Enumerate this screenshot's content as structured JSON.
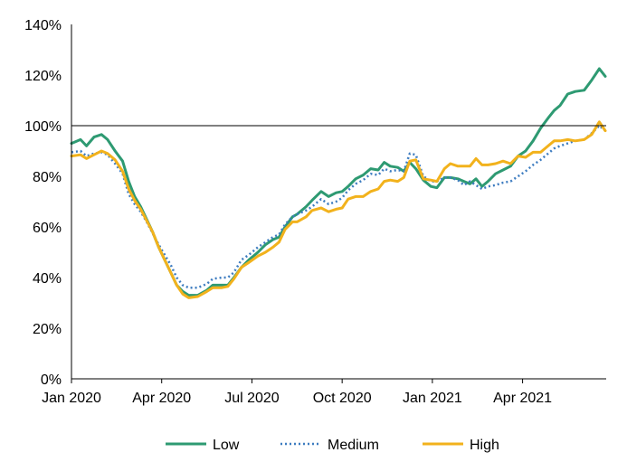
{
  "chart_data": {
    "type": "line",
    "title": "",
    "xlabel": "",
    "ylabel": "",
    "ylim": [
      0,
      140
    ],
    "y_ticks": [
      "0%",
      "20%",
      "40%",
      "60%",
      "80%",
      "100%",
      "120%",
      "140%"
    ],
    "x_ticks": [
      {
        "label": "Jan 2020",
        "month": 0
      },
      {
        "label": "Apr 2020",
        "month": 3
      },
      {
        "label": "Jul 2020",
        "month": 6
      },
      {
        "label": "Oct 2020",
        "month": 9
      },
      {
        "label": "Jan 2021",
        "month": 12
      },
      {
        "label": "Apr 2021",
        "month": 15
      }
    ],
    "reference_line": 100,
    "legend_position": "bottom",
    "series": [
      {
        "name": "Low",
        "color": "#2e9a72",
        "style": "solid",
        "points": [
          [
            0,
            93
          ],
          [
            0.3,
            94.5
          ],
          [
            0.5,
            92
          ],
          [
            0.75,
            95.5
          ],
          [
            1,
            96.5
          ],
          [
            1.2,
            94.5
          ],
          [
            1.45,
            90
          ],
          [
            1.7,
            86
          ],
          [
            1.9,
            78
          ],
          [
            2.1,
            72
          ],
          [
            2.3,
            68
          ],
          [
            2.5,
            63
          ],
          [
            2.7,
            58
          ],
          [
            2.9,
            52
          ],
          [
            3.1,
            47
          ],
          [
            3.3,
            42
          ],
          [
            3.5,
            37
          ],
          [
            3.7,
            34.5
          ],
          [
            3.9,
            33
          ],
          [
            4.2,
            33
          ],
          [
            4.5,
            35
          ],
          [
            4.7,
            37
          ],
          [
            5,
            37
          ],
          [
            5.2,
            37
          ],
          [
            5.4,
            40
          ],
          [
            5.65,
            44
          ],
          [
            5.9,
            47
          ],
          [
            6.2,
            50
          ],
          [
            6.45,
            53
          ],
          [
            6.7,
            55
          ],
          [
            6.9,
            56
          ],
          [
            7.1,
            60
          ],
          [
            7.35,
            64
          ],
          [
            7.5,
            65
          ],
          [
            7.8,
            68
          ],
          [
            8,
            70.5
          ],
          [
            8.3,
            74
          ],
          [
            8.55,
            72
          ],
          [
            8.8,
            73.5
          ],
          [
            9,
            74
          ],
          [
            9.2,
            76
          ],
          [
            9.45,
            79
          ],
          [
            9.7,
            80.5
          ],
          [
            9.95,
            83
          ],
          [
            10.2,
            82.5
          ],
          [
            10.4,
            85.5
          ],
          [
            10.6,
            84
          ],
          [
            10.85,
            83.5
          ],
          [
            11.05,
            82
          ],
          [
            11.25,
            85.5
          ],
          [
            11.45,
            83
          ],
          [
            11.7,
            78.5
          ],
          [
            11.95,
            76
          ],
          [
            12.15,
            75.5
          ],
          [
            12.4,
            79.5
          ],
          [
            12.6,
            79.5
          ],
          [
            12.85,
            79
          ],
          [
            13.05,
            78
          ],
          [
            13.25,
            77
          ],
          [
            13.45,
            79
          ],
          [
            13.65,
            76
          ],
          [
            13.85,
            78
          ],
          [
            14.1,
            81
          ],
          [
            14.35,
            82.5
          ],
          [
            14.6,
            84
          ],
          [
            14.85,
            88
          ],
          [
            15.1,
            90
          ],
          [
            15.35,
            94
          ],
          [
            15.6,
            99
          ],
          [
            15.85,
            103
          ],
          [
            16.05,
            106
          ],
          [
            16.25,
            108
          ],
          [
            16.5,
            112.5
          ],
          [
            16.75,
            113.5
          ],
          [
            17.05,
            114
          ],
          [
            17.3,
            118
          ],
          [
            17.55,
            122.5
          ],
          [
            17.75,
            119.5
          ]
        ]
      },
      {
        "name": "Medium",
        "color": "#3d7cc0",
        "style": "dotted",
        "points": [
          [
            0,
            89.5
          ],
          [
            0.3,
            90
          ],
          [
            0.5,
            88
          ],
          [
            0.75,
            89
          ],
          [
            1,
            89.5
          ],
          [
            1.2,
            88.5
          ],
          [
            1.45,
            85
          ],
          [
            1.7,
            81
          ],
          [
            1.9,
            73
          ],
          [
            2.1,
            69
          ],
          [
            2.3,
            66
          ],
          [
            2.5,
            62
          ],
          [
            2.7,
            57.5
          ],
          [
            2.9,
            53
          ],
          [
            3.1,
            49
          ],
          [
            3.3,
            45
          ],
          [
            3.5,
            40
          ],
          [
            3.7,
            37
          ],
          [
            3.9,
            36
          ],
          [
            4.2,
            36
          ],
          [
            4.5,
            37.5
          ],
          [
            4.7,
            39.5
          ],
          [
            5,
            40
          ],
          [
            5.2,
            40
          ],
          [
            5.4,
            42
          ],
          [
            5.65,
            47
          ],
          [
            5.9,
            49
          ],
          [
            6.2,
            52
          ],
          [
            6.45,
            54
          ],
          [
            6.7,
            56
          ],
          [
            6.9,
            57
          ],
          [
            7.1,
            61
          ],
          [
            7.35,
            64
          ],
          [
            7.5,
            65
          ],
          [
            7.8,
            66.5
          ],
          [
            8,
            68
          ],
          [
            8.3,
            71
          ],
          [
            8.55,
            69
          ],
          [
            8.8,
            70
          ],
          [
            9,
            71.5
          ],
          [
            9.2,
            74.5
          ],
          [
            9.45,
            77
          ],
          [
            9.7,
            78.5
          ],
          [
            9.95,
            81
          ],
          [
            10.2,
            80.5
          ],
          [
            10.4,
            83
          ],
          [
            10.6,
            82
          ],
          [
            10.85,
            82.5
          ],
          [
            11.05,
            82
          ],
          [
            11.25,
            89
          ],
          [
            11.45,
            88.5
          ],
          [
            11.7,
            80
          ],
          [
            11.95,
            78
          ],
          [
            12.15,
            78
          ],
          [
            12.4,
            79.5
          ],
          [
            12.6,
            79.5
          ],
          [
            12.85,
            78.5
          ],
          [
            13.05,
            76.5
          ],
          [
            13.25,
            78
          ],
          [
            13.45,
            76.5
          ],
          [
            13.65,
            75
          ],
          [
            13.85,
            76
          ],
          [
            14.1,
            76.5
          ],
          [
            14.35,
            77.5
          ],
          [
            14.6,
            78
          ],
          [
            14.85,
            80
          ],
          [
            15.1,
            82
          ],
          [
            15.35,
            84.5
          ],
          [
            15.6,
            86.5
          ],
          [
            15.85,
            89
          ],
          [
            16.05,
            91
          ],
          [
            16.25,
            92
          ],
          [
            16.5,
            93
          ],
          [
            16.75,
            94
          ],
          [
            17.05,
            94.5
          ],
          [
            17.3,
            97
          ],
          [
            17.55,
            100
          ],
          [
            17.75,
            98
          ]
        ]
      },
      {
        "name": "High",
        "color": "#f2b21c",
        "style": "solid",
        "points": [
          [
            0,
            88
          ],
          [
            0.3,
            88.5
          ],
          [
            0.5,
            87
          ],
          [
            0.75,
            88.5
          ],
          [
            1,
            90
          ],
          [
            1.2,
            89
          ],
          [
            1.45,
            86.5
          ],
          [
            1.7,
            82
          ],
          [
            1.9,
            75
          ],
          [
            2.1,
            70.5
          ],
          [
            2.3,
            67
          ],
          [
            2.5,
            62.5
          ],
          [
            2.7,
            58
          ],
          [
            2.9,
            52
          ],
          [
            3.1,
            47
          ],
          [
            3.3,
            42
          ],
          [
            3.5,
            37
          ],
          [
            3.7,
            33.5
          ],
          [
            3.9,
            32
          ],
          [
            4.2,
            32.5
          ],
          [
            4.5,
            34.5
          ],
          [
            4.7,
            36
          ],
          [
            5,
            36
          ],
          [
            5.2,
            36.5
          ],
          [
            5.4,
            39.5
          ],
          [
            5.65,
            44
          ],
          [
            5.9,
            46
          ],
          [
            6.2,
            48.5
          ],
          [
            6.45,
            50
          ],
          [
            6.7,
            52
          ],
          [
            6.9,
            54
          ],
          [
            7.1,
            59
          ],
          [
            7.35,
            62
          ],
          [
            7.5,
            62
          ],
          [
            7.8,
            64
          ],
          [
            8,
            66.5
          ],
          [
            8.3,
            67.5
          ],
          [
            8.55,
            66
          ],
          [
            8.8,
            67
          ],
          [
            9,
            67.5
          ],
          [
            9.2,
            71
          ],
          [
            9.45,
            72
          ],
          [
            9.7,
            72
          ],
          [
            9.95,
            74
          ],
          [
            10.2,
            75
          ],
          [
            10.4,
            78
          ],
          [
            10.6,
            78.5
          ],
          [
            10.85,
            78
          ],
          [
            11.05,
            79.5
          ],
          [
            11.25,
            86
          ],
          [
            11.45,
            86.5
          ],
          [
            11.7,
            79
          ],
          [
            11.95,
            78.5
          ],
          [
            12.15,
            78
          ],
          [
            12.4,
            83
          ],
          [
            12.6,
            85
          ],
          [
            12.85,
            84
          ],
          [
            13.05,
            84
          ],
          [
            13.25,
            84
          ],
          [
            13.45,
            87
          ],
          [
            13.65,
            84.5
          ],
          [
            13.85,
            84.5
          ],
          [
            14.1,
            85
          ],
          [
            14.35,
            86
          ],
          [
            14.6,
            85
          ],
          [
            14.85,
            88
          ],
          [
            15.1,
            87.5
          ],
          [
            15.35,
            89.5
          ],
          [
            15.6,
            89.5
          ],
          [
            15.85,
            92
          ],
          [
            16.05,
            94
          ],
          [
            16.25,
            94
          ],
          [
            16.5,
            94.5
          ],
          [
            16.75,
            94
          ],
          [
            17.05,
            94.5
          ],
          [
            17.3,
            96.5
          ],
          [
            17.55,
            101.5
          ],
          [
            17.75,
            98
          ]
        ]
      }
    ]
  }
}
